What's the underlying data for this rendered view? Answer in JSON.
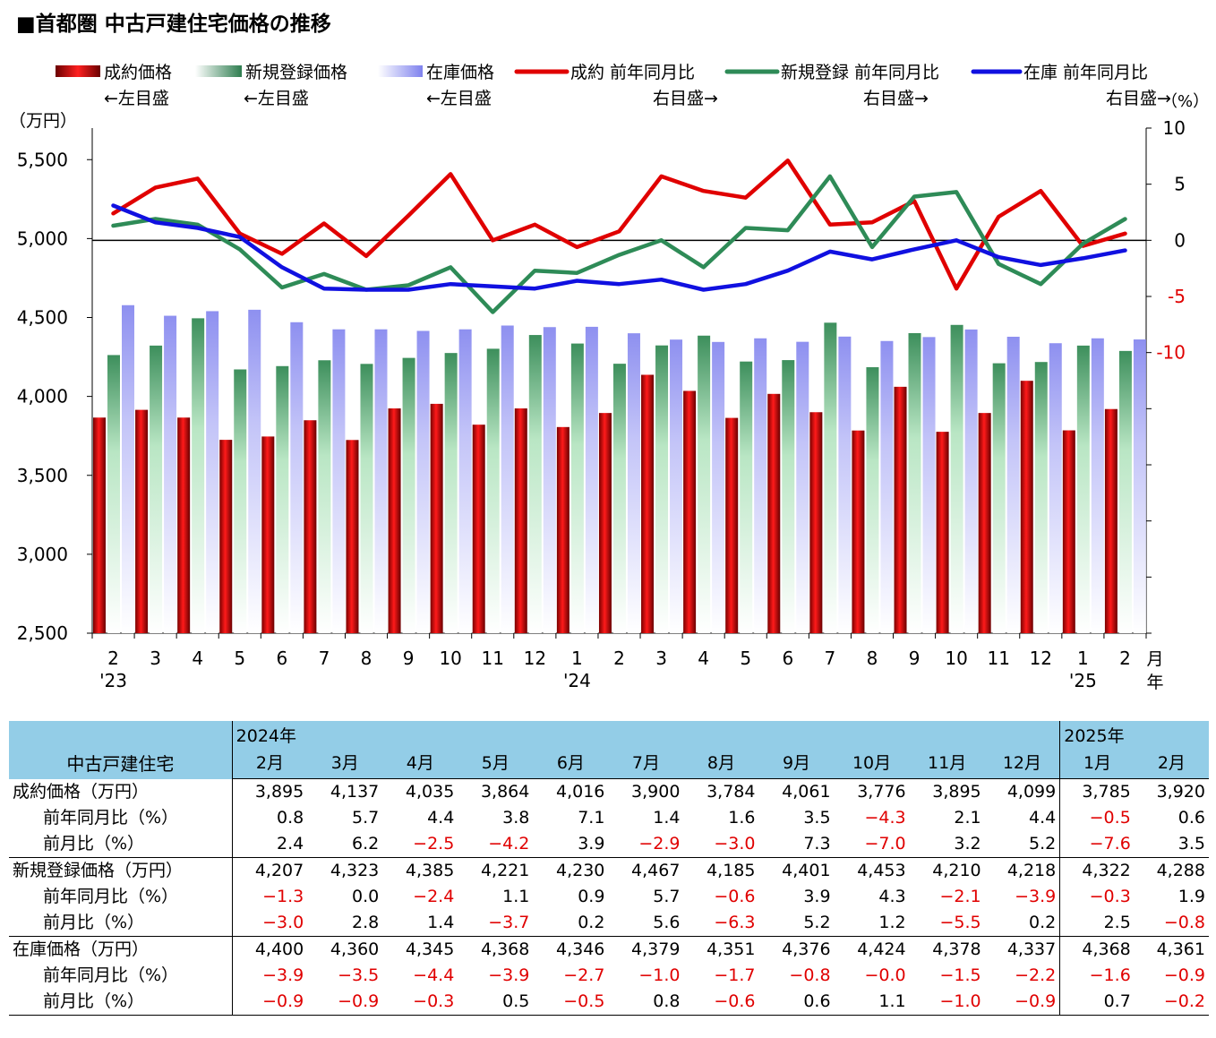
{
  "chart_data": {
    "type": "bar",
    "title": "■首都圏 中古戸建住宅価格の推移",
    "y_left": {
      "unit": "（万円）",
      "range": [
        2500,
        5700
      ],
      "ticks": [
        "2,500",
        "3,000",
        "3,500",
        "4,000",
        "4,500",
        "5,000",
        "5,500"
      ],
      "tick_values": [
        2500,
        3000,
        3500,
        4000,
        4500,
        5000,
        5500
      ]
    },
    "y_right": {
      "unit": "（%）",
      "range": [
        -35,
        10
      ],
      "ticks": [
        "10",
        "5",
        "0",
        "-5",
        "-10"
      ],
      "tick_values": [
        10,
        5,
        0,
        -5,
        -10
      ],
      "negative_color": "#e00000"
    },
    "x_month_labels": [
      "2",
      "3",
      "4",
      "5",
      "6",
      "7",
      "8",
      "9",
      "10",
      "11",
      "12",
      "1",
      "2",
      "3",
      "4",
      "5",
      "6",
      "7",
      "8",
      "9",
      "10",
      "11",
      "12",
      "1",
      "2"
    ],
    "x_year_labels": [
      {
        "index": 0,
        "label": "'23"
      },
      {
        "index": 11,
        "label": "'24"
      },
      {
        "index": 23,
        "label": "'25"
      }
    ],
    "x_unit_month": "月",
    "x_unit_year": "年",
    "legend": [
      {
        "label": "成約価格",
        "axis_note": "←左目盛",
        "kind": "bar",
        "color": "#e00000"
      },
      {
        "label": "新規登録価格",
        "axis_note": "←左目盛",
        "kind": "bar",
        "color": "#2e8b57"
      },
      {
        "label": "在庫価格",
        "axis_note": "←左目盛",
        "kind": "bar",
        "color": "#9a9cf0"
      },
      {
        "label": "成約 前年同月比",
        "axis_note": "右目盛→",
        "kind": "line",
        "color": "#e00000"
      },
      {
        "label": "新規登録 前年同月比",
        "axis_note": "右目盛→",
        "kind": "line",
        "color": "#2e8b57"
      },
      {
        "label": "在庫 前年同月比",
        "axis_note": "右目盛→",
        "kind": "line",
        "color": "#1010e0"
      }
    ],
    "bar_series": [
      {
        "name": "成約価格",
        "color": "#e00000",
        "values": [
          3866,
          3915,
          3866,
          3725,
          3746,
          3849,
          3724,
          3924,
          3953,
          3821,
          3924,
          3806,
          3895,
          4137,
          4035,
          3864,
          4016,
          3900,
          3784,
          4061,
          3776,
          3895,
          4099,
          3785,
          3920
        ]
      },
      {
        "name": "新規登録価格",
        "color": "#2e8b57",
        "values": [
          4262,
          4322,
          4495,
          4171,
          4192,
          4229,
          4206,
          4244,
          4275,
          4302,
          4389,
          4335,
          4207,
          4323,
          4385,
          4221,
          4230,
          4467,
          4185,
          4401,
          4453,
          4210,
          4218,
          4322,
          4288
        ]
      },
      {
        "name": "在庫価格",
        "color": "#9a9cf0",
        "values": [
          4578,
          4511,
          4540,
          4549,
          4470,
          4425,
          4425,
          4415,
          4425,
          4449,
          4439,
          4441,
          4400,
          4360,
          4345,
          4368,
          4346,
          4379,
          4351,
          4376,
          4424,
          4378,
          4337,
          4368,
          4361
        ]
      }
    ],
    "line_series": [
      {
        "name": "成約 前年同月比",
        "color": "#e00000",
        "values": [
          2.4,
          4.7,
          5.5,
          0.6,
          -1.2,
          1.5,
          -1.4,
          2.2,
          5.9,
          0.0,
          1.4,
          -0.6,
          0.8,
          5.7,
          4.4,
          3.8,
          7.1,
          1.4,
          1.6,
          3.5,
          -4.3,
          2.1,
          4.4,
          -0.5,
          0.6
        ]
      },
      {
        "name": "新規登録 前年同月比",
        "color": "#2e8b57",
        "values": [
          1.3,
          1.9,
          1.4,
          -0.8,
          -4.2,
          -3.0,
          -4.4,
          -4.0,
          -2.4,
          -6.4,
          -2.7,
          -2.9,
          -1.3,
          0.0,
          -2.4,
          1.1,
          0.9,
          5.7,
          -0.6,
          3.9,
          4.3,
          -2.1,
          -3.9,
          -0.3,
          1.9
        ]
      },
      {
        "name": "在庫 前年同月比",
        "color": "#1010e0",
        "values": [
          3.1,
          1.6,
          1.1,
          0.3,
          -2.4,
          -4.3,
          -4.4,
          -4.4,
          -3.9,
          -4.1,
          -4.3,
          -3.6,
          -3.9,
          -3.5,
          -4.4,
          -3.9,
          -2.7,
          -1.0,
          -1.7,
          -0.8,
          -0.0,
          -1.5,
          -2.2,
          -1.6,
          -0.9
        ]
      }
    ]
  },
  "table": {
    "corner": "中古戸建住宅",
    "year_2024": "2024年",
    "year_2025": "2025年",
    "months": [
      "2月",
      "3月",
      "4月",
      "5月",
      "6月",
      "7月",
      "8月",
      "9月",
      "10月",
      "11月",
      "12月",
      "1月",
      "2月"
    ],
    "groups": [
      {
        "rows": [
          {
            "label": "成約価格（万円）",
            "values": [
              "3,895",
              "4,137",
              "4,035",
              "3,864",
              "4,016",
              "3,900",
              "3,784",
              "4,061",
              "3,776",
              "3,895",
              "4,099",
              "3,785",
              "3,920"
            ]
          },
          {
            "label": "前年同月比（%）",
            "values": [
              "0.8",
              "5.7",
              "4.4",
              "3.8",
              "7.1",
              "1.4",
              "1.6",
              "3.5",
              "−4.3",
              "2.1",
              "4.4",
              "−0.5",
              "0.6"
            ]
          },
          {
            "label": "前月比（%）",
            "values": [
              "2.4",
              "6.2",
              "−2.5",
              "−4.2",
              "3.9",
              "−2.9",
              "−3.0",
              "7.3",
              "−7.0",
              "3.2",
              "5.2",
              "−7.6",
              "3.5"
            ]
          }
        ]
      },
      {
        "rows": [
          {
            "label": "新規登録価格（万円）",
            "values": [
              "4,207",
              "4,323",
              "4,385",
              "4,221",
              "4,230",
              "4,467",
              "4,185",
              "4,401",
              "4,453",
              "4,210",
              "4,218",
              "4,322",
              "4,288"
            ]
          },
          {
            "label": "前年同月比（%）",
            "values": [
              "−1.3",
              "0.0",
              "−2.4",
              "1.1",
              "0.9",
              "5.7",
              "−0.6",
              "3.9",
              "4.3",
              "−2.1",
              "−3.9",
              "−0.3",
              "1.9"
            ]
          },
          {
            "label": "前月比（%）",
            "values": [
              "−3.0",
              "2.8",
              "1.4",
              "−3.7",
              "0.2",
              "5.6",
              "−6.3",
              "5.2",
              "1.2",
              "−5.5",
              "0.2",
              "2.5",
              "−0.8"
            ]
          }
        ]
      },
      {
        "rows": [
          {
            "label": "在庫価格（万円）",
            "values": [
              "4,400",
              "4,360",
              "4,345",
              "4,368",
              "4,346",
              "4,379",
              "4,351",
              "4,376",
              "4,424",
              "4,378",
              "4,337",
              "4,368",
              "4,361"
            ]
          },
          {
            "label": "前年同月比（%）",
            "values": [
              "−3.9",
              "−3.5",
              "−4.4",
              "−3.9",
              "−2.7",
              "−1.0",
              "−1.7",
              "−0.8",
              "−0.0",
              "−1.5",
              "−2.2",
              "−1.6",
              "−0.9"
            ]
          },
          {
            "label": "前月比（%）",
            "values": [
              "−0.9",
              "−0.9",
              "−0.3",
              "0.5",
              "−0.5",
              "0.8",
              "−0.6",
              "0.6",
              "1.1",
              "−1.0",
              "−0.9",
              "0.7",
              "−0.2"
            ]
          }
        ]
      }
    ]
  }
}
